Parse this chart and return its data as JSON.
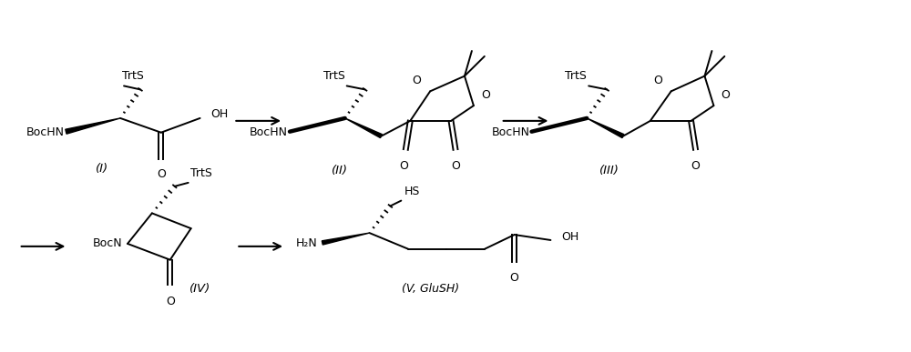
{
  "background_color": "#ffffff",
  "line_color": "#000000",
  "text_color": "#000000",
  "fig_width": 10.0,
  "fig_height": 3.87,
  "dpi": 100,
  "label_I": "(I)",
  "label_II": "(II)",
  "label_III": "(III)",
  "label_IV": "(IV)",
  "label_V": "(V, GluSH)",
  "fs_chem": 9.0,
  "fs_label": 9.5
}
